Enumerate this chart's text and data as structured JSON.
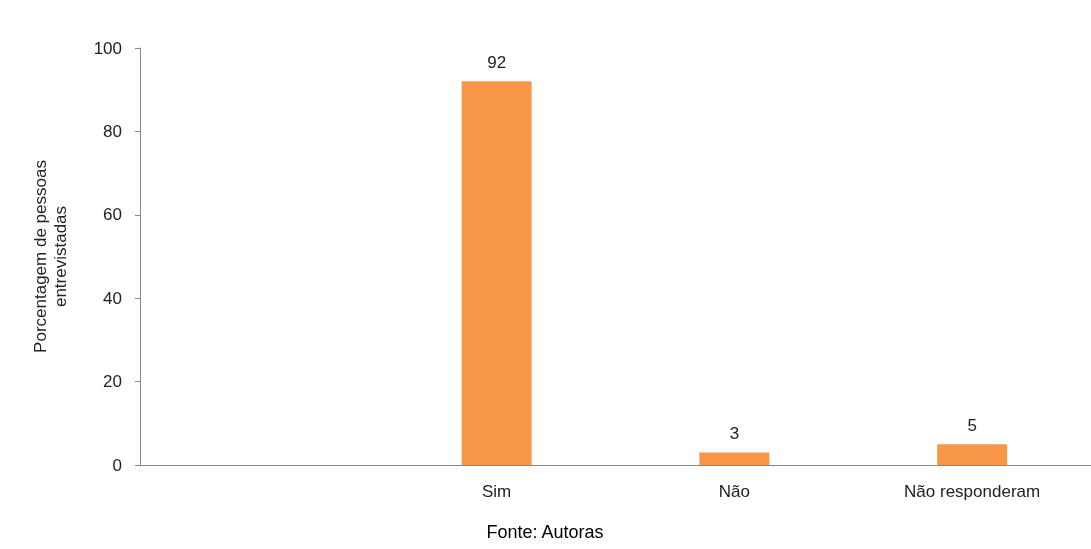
{
  "chart_data": {
    "type": "bar",
    "categories": [
      null,
      "Sim",
      "Não",
      "Não responderam"
    ],
    "values": [
      null,
      92,
      3,
      5
    ],
    "color": "#f79646",
    "ylabel": "Porcentagem de pessoas entrevistadas",
    "ylim": [
      0,
      100
    ],
    "yticks": [
      0,
      20,
      40,
      60,
      80,
      100
    ],
    "data_labels": true,
    "annotations": [
      "Fonte: Autoras"
    ]
  }
}
